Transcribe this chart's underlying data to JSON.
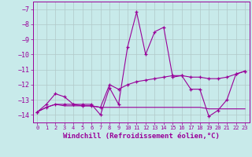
{
  "xlabel": "Windchill (Refroidissement éolien,°C)",
  "background_color": "#c8eaea",
  "grid_color": "#b0c8c8",
  "line_color": "#990099",
  "xlim": [
    -0.5,
    23.5
  ],
  "ylim": [
    -14.5,
    -6.5
  ],
  "yticks": [
    -14,
    -13,
    -12,
    -11,
    -10,
    -9,
    -8,
    -7
  ],
  "xticks": [
    0,
    1,
    2,
    3,
    4,
    5,
    6,
    7,
    8,
    9,
    10,
    11,
    12,
    13,
    14,
    15,
    16,
    17,
    18,
    19,
    20,
    21,
    22,
    23
  ],
  "series1_x": [
    0,
    1,
    2,
    3,
    4,
    5,
    6,
    7,
    8,
    9,
    10,
    11,
    12,
    13,
    14,
    15,
    16,
    17,
    18,
    19,
    20,
    21,
    22,
    23
  ],
  "series1_y": [
    -13.8,
    -13.3,
    -12.6,
    -12.8,
    -13.3,
    -13.3,
    -13.3,
    -14.0,
    -12.2,
    -13.3,
    -9.5,
    -7.2,
    -10.0,
    -8.5,
    -8.2,
    -11.5,
    -11.4,
    -12.3,
    -12.3,
    -14.1,
    -13.7,
    -13.0,
    -11.3,
    -11.1
  ],
  "series2_x": [
    0,
    1,
    2,
    3,
    4,
    5,
    6,
    7,
    8,
    9,
    10,
    11,
    12,
    13,
    14,
    15,
    16,
    17,
    18,
    19,
    20,
    21,
    22,
    23
  ],
  "series2_y": [
    -13.8,
    -13.5,
    -13.3,
    -13.3,
    -13.3,
    -13.4,
    -13.4,
    -13.5,
    -12.0,
    -12.3,
    -12.0,
    -11.8,
    -11.7,
    -11.6,
    -11.5,
    -11.4,
    -11.4,
    -11.5,
    -11.5,
    -11.6,
    -11.6,
    -11.5,
    -11.3,
    -11.1
  ],
  "series3_x": [
    0,
    1,
    2,
    3,
    4,
    5,
    6,
    7,
    8,
    9,
    10,
    11,
    12,
    13,
    14,
    15,
    16,
    17,
    18,
    19,
    20,
    21,
    22,
    23
  ],
  "series3_y": [
    -13.8,
    -13.5,
    -13.3,
    -13.4,
    -13.4,
    -13.4,
    -13.4,
    -13.5,
    -13.5,
    -13.5,
    -13.5,
    -13.5,
    -13.5,
    -13.5,
    -13.5,
    -13.5,
    -13.5,
    -13.5,
    -13.5,
    -13.6,
    -13.6,
    -13.6,
    -13.6,
    -13.6
  ]
}
